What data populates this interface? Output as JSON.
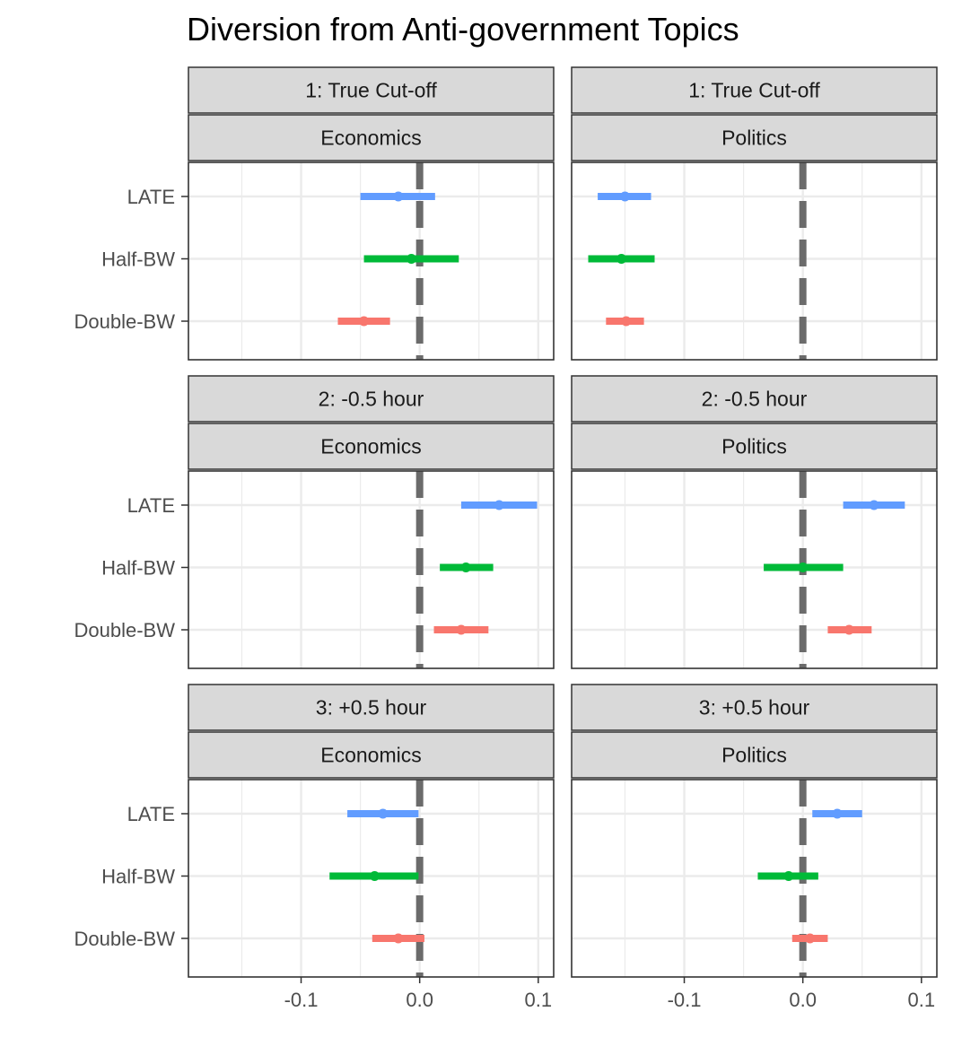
{
  "chart_data": {
    "type": "forest",
    "title": "Diversion from Anti-government Topics",
    "xlabel": "",
    "ylabel": "",
    "xlim": [
      -0.195,
      0.113
    ],
    "x_ticks": [
      -0.1,
      0.0,
      0.1
    ],
    "x_tick_labels": [
      "-0.1",
      "0.0",
      "0.1"
    ],
    "reference_line": 0.0,
    "grid": true,
    "legend": "none",
    "row_labels": [
      "LATE",
      "Half-BW",
      "Double-BW"
    ],
    "colors": {
      "LATE": "#619CFF",
      "Half-BW": "#00BA38",
      "Double-BW": "#F8766D"
    },
    "strip_colors": {
      "background": "#d9d9d9",
      "border": "#333333",
      "panel_border": "#333333",
      "grid": "#ebebeb",
      "reference": "#6b6b6b"
    },
    "panels": [
      {
        "row_strip": "1: True Cut-off",
        "col_strip": "Economics",
        "estimates": [
          {
            "label": "LATE",
            "est": -0.018,
            "lo": -0.05,
            "hi": 0.013
          },
          {
            "label": "Half-BW",
            "est": -0.007,
            "lo": -0.047,
            "hi": 0.033
          },
          {
            "label": "Double-BW",
            "est": -0.047,
            "lo": -0.069,
            "hi": -0.025
          }
        ]
      },
      {
        "row_strip": "1: True Cut-off",
        "col_strip": "Politics",
        "estimates": [
          {
            "label": "LATE",
            "est": -0.15,
            "lo": -0.173,
            "hi": -0.128
          },
          {
            "label": "Half-BW",
            "est": -0.153,
            "lo": -0.181,
            "hi": -0.125
          },
          {
            "label": "Double-BW",
            "est": -0.149,
            "lo": -0.166,
            "hi": -0.134
          }
        ]
      },
      {
        "row_strip": "2: -0.5 hour",
        "col_strip": "Economics",
        "estimates": [
          {
            "label": "LATE",
            "est": 0.067,
            "lo": 0.035,
            "hi": 0.099
          },
          {
            "label": "Half-BW",
            "est": 0.039,
            "lo": 0.017,
            "hi": 0.062
          },
          {
            "label": "Double-BW",
            "est": 0.035,
            "lo": 0.012,
            "hi": 0.058
          }
        ]
      },
      {
        "row_strip": "2: -0.5 hour",
        "col_strip": "Politics",
        "estimates": [
          {
            "label": "LATE",
            "est": 0.06,
            "lo": 0.034,
            "hi": 0.086
          },
          {
            "label": "Half-BW",
            "est": 0.0,
            "lo": -0.033,
            "hi": 0.034
          },
          {
            "label": "Double-BW",
            "est": 0.039,
            "lo": 0.021,
            "hi": 0.058
          }
        ]
      },
      {
        "row_strip": "3: +0.5 hour",
        "col_strip": "Economics",
        "estimates": [
          {
            "label": "LATE",
            "est": -0.031,
            "lo": -0.061,
            "hi": -0.001
          },
          {
            "label": "Half-BW",
            "est": -0.038,
            "lo": -0.076,
            "hi": -0.001
          },
          {
            "label": "Double-BW",
            "est": -0.018,
            "lo": -0.04,
            "hi": 0.004
          }
        ]
      },
      {
        "row_strip": "3: +0.5 hour",
        "col_strip": "Politics",
        "estimates": [
          {
            "label": "LATE",
            "est": 0.029,
            "lo": 0.008,
            "hi": 0.05
          },
          {
            "label": "Half-BW",
            "est": -0.012,
            "lo": -0.038,
            "hi": 0.013
          },
          {
            "label": "Double-BW",
            "est": 0.006,
            "lo": -0.009,
            "hi": 0.021
          }
        ]
      }
    ]
  }
}
